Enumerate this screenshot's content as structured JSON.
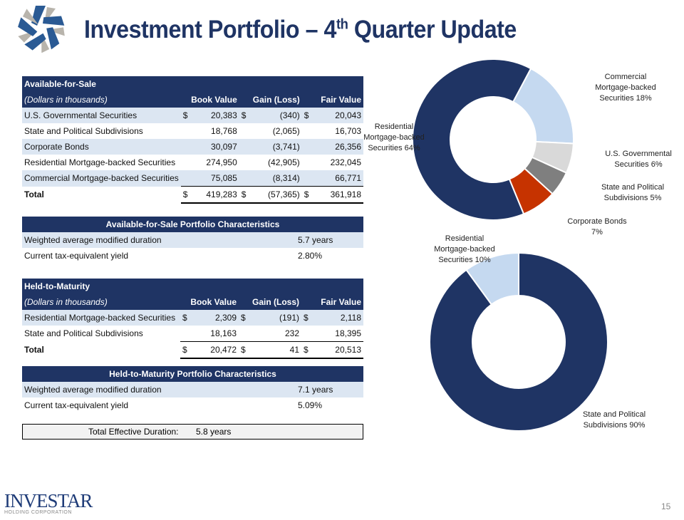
{
  "header": {
    "title": "Investment Portfolio – 4",
    "title_sup": "th",
    "title_end": " Quarter Update"
  },
  "afs": {
    "title": "Available-for-Sale",
    "subtitle": "(Dollars in thousands)",
    "cols": [
      "Book Value",
      "Gain (Loss)",
      "Fair Value"
    ],
    "rows": [
      {
        "name": "U.S. Governmental Securities",
        "d": "$",
        "book": "20,383",
        "gain": "(340)",
        "fair": "20,043"
      },
      {
        "name": "State and Political Subdivisions",
        "d": "",
        "book": "18,768",
        "gain": "(2,065)",
        "fair": "16,703"
      },
      {
        "name": "Corporate Bonds",
        "d": "",
        "book": "30,097",
        "gain": "(3,741)",
        "fair": "26,356"
      },
      {
        "name": "Residential Mortgage-backed Securities",
        "d": "",
        "book": "274,950",
        "gain": "(42,905)",
        "fair": "232,045"
      },
      {
        "name": "Commercial Mortgage-backed Securities",
        "d": "",
        "book": "75,085",
        "gain": "(8,314)",
        "fair": "66,771"
      }
    ],
    "total": {
      "name": "Total",
      "d": "$",
      "book": "419,283",
      "gain": "(57,365)",
      "fair": "361,918"
    }
  },
  "afs_char": {
    "title": "Available-for-Sale Portfolio Characteristics",
    "rows": [
      {
        "name": "Weighted average modified duration",
        "value": "5.7 years"
      },
      {
        "name": "Current tax-equivalent yield",
        "value": "2.80%"
      }
    ]
  },
  "htm": {
    "title": "Held-to-Maturity",
    "subtitle": "(Dollars in thousands)",
    "cols": [
      "Book Value",
      "Gain (Loss)",
      "Fair Value"
    ],
    "rows": [
      {
        "name": "Residential Mortgage-backed Securities",
        "d": "$",
        "book": "2,309",
        "gain": "(191)",
        "fair": "2,118"
      },
      {
        "name": "State and Political Subdivisions",
        "d": "",
        "book": "18,163",
        "gain": "232",
        "fair": "18,395"
      }
    ],
    "total": {
      "name": "Total",
      "d": "$",
      "book": "20,472",
      "gain": "41",
      "fair": "20,513"
    }
  },
  "htm_char": {
    "title": "Held-to-Maturity Portfolio Characteristics",
    "rows": [
      {
        "name": "Weighted average modified duration",
        "value": "7.1 years"
      },
      {
        "name": "Current tax-equivalent yield",
        "value": "5.09%"
      }
    ]
  },
  "duration": {
    "label": "Total Effective Duration:",
    "value": "5.8 years"
  },
  "chart_data": [
    {
      "type": "pie",
      "subtype": "donut",
      "series": [
        {
          "label": "Commercial Mortgage-backed Securities 18%",
          "value": 18,
          "color": "#c5d9f0"
        },
        {
          "label": "U.S. Governmental Securities 6%",
          "value": 6,
          "color": "#d9d9d9"
        },
        {
          "label": "State and Political Subdivisions 5%",
          "value": 5,
          "color": "#7f7f7f"
        },
        {
          "label": "Corporate Bonds 7%",
          "value": 7,
          "color": "#c63300"
        },
        {
          "label": "Residential Mortgage-backed Securities 64%",
          "value": 64,
          "color": "#1f3464"
        }
      ]
    },
    {
      "type": "pie",
      "subtype": "donut",
      "series": [
        {
          "label": "State and Political Subdivisions 90%",
          "value": 90,
          "color": "#1f3464"
        },
        {
          "label": "Residential Mortgage-backed Securities 10%",
          "value": 10,
          "color": "#c5d9f0"
        }
      ]
    }
  ],
  "footer": {
    "company": "INVESTAR",
    "company_sub": "HOLDING CORPORATION",
    "page": "15"
  }
}
